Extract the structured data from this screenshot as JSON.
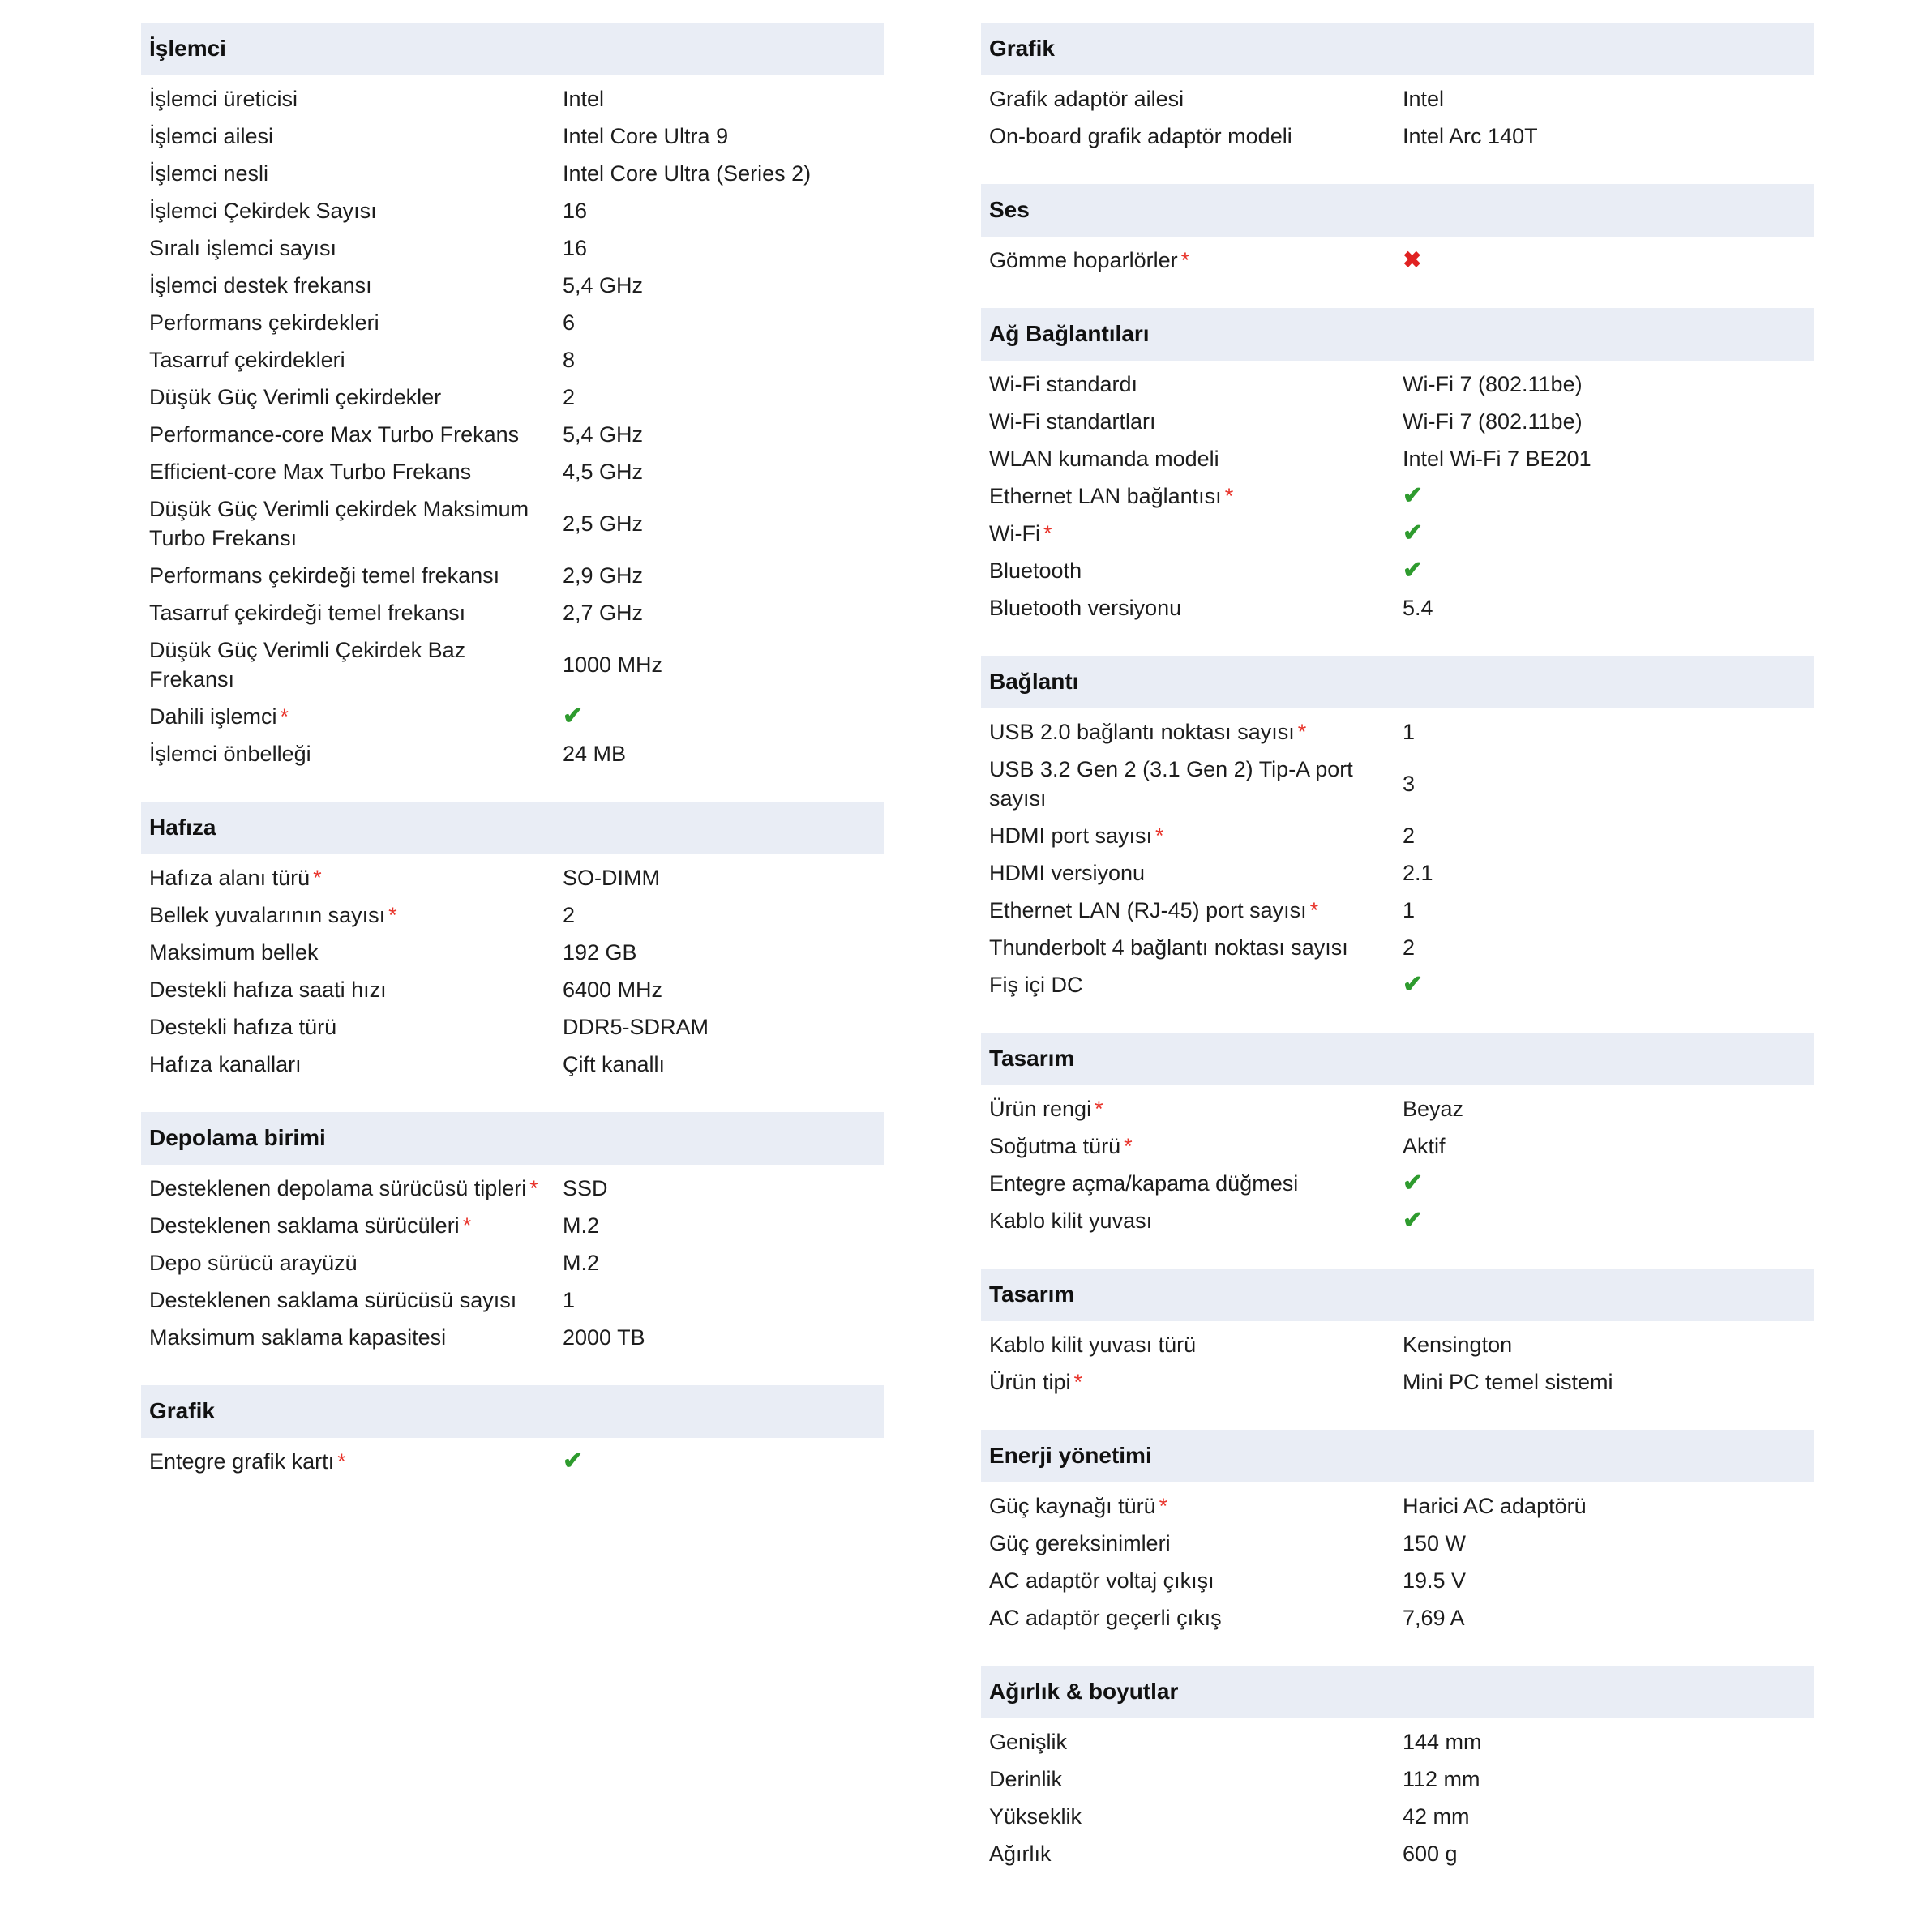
{
  "symbols": {
    "check": "✔",
    "cross": "✖",
    "required_marker": "*"
  },
  "colors": {
    "header_bg": "#e9edf5",
    "text": "#1d1d1d",
    "required": "#e8342b",
    "check": "#2e9b2e",
    "cross": "#e02222",
    "page_bg": "#ffffff"
  },
  "columns": [
    {
      "id": "left",
      "sections": [
        {
          "title": "İşlemci",
          "rows": [
            {
              "label": "İşlemci üreticisi",
              "value": "Intel"
            },
            {
              "label": "İşlemci ailesi",
              "value": "Intel Core Ultra 9"
            },
            {
              "label": "İşlemci nesli",
              "value": "Intel Core Ultra (Series 2)"
            },
            {
              "label": "İşlemci Çekirdek Sayısı",
              "value": "16"
            },
            {
              "label": "Sıralı işlemci sayısı",
              "value": "16"
            },
            {
              "label": "İşlemci destek frekansı",
              "value": "5,4 GHz"
            },
            {
              "label": "Performans çekirdekleri",
              "value": "6"
            },
            {
              "label": "Tasarruf çekirdekleri",
              "value": "8"
            },
            {
              "label": "Düşük Güç Verimli çekirdekler",
              "value": "2"
            },
            {
              "label": "Performance-core Max Turbo Frekans",
              "value": "5,4 GHz"
            },
            {
              "label": "Efficient-core Max Turbo Frekans",
              "value": "4,5 GHz"
            },
            {
              "label": "Düşük Güç Verimli çekirdek Maksimum Turbo Frekansı",
              "value": "2,5 GHz"
            },
            {
              "label": "Performans çekirdeği temel frekansı",
              "value": "2,9 GHz"
            },
            {
              "label": "Tasarruf çekirdeği temel frekansı",
              "value": "2,7 GHz"
            },
            {
              "label": "Düşük Güç Verimli Çekirdek Baz Frekansı",
              "value": "1000 MHz"
            },
            {
              "label": "Dahili işlemci",
              "required": true,
              "value_type": "check"
            },
            {
              "label": "İşlemci önbelleği",
              "value": "24 MB"
            }
          ]
        },
        {
          "title": "Hafıza",
          "rows": [
            {
              "label": "Hafıza alanı türü",
              "required": true,
              "value": "SO-DIMM"
            },
            {
              "label": "Bellek yuvalarının sayısı",
              "required": true,
              "value": "2"
            },
            {
              "label": "Maksimum bellek",
              "value": "192 GB"
            },
            {
              "label": "Destekli hafıza saati hızı",
              "value": "6400 MHz"
            },
            {
              "label": "Destekli hafıza türü",
              "value": "DDR5-SDRAM"
            },
            {
              "label": "Hafıza kanalları",
              "value": "Çift kanallı"
            }
          ]
        },
        {
          "title": "Depolama birimi",
          "rows": [
            {
              "label": "Desteklenen depolama sürücüsü tipleri",
              "required": true,
              "value": "SSD"
            },
            {
              "label": "Desteklenen saklama sürücüleri",
              "required": true,
              "value": "M.2"
            },
            {
              "label": "Depo sürücü arayüzü",
              "value": "M.2"
            },
            {
              "label": "Desteklenen saklama sürücüsü sayısı",
              "value": "1"
            },
            {
              "label": "Maksimum saklama kapasitesi",
              "value": "2000 TB"
            }
          ]
        },
        {
          "title": "Grafik",
          "rows": [
            {
              "label": "Entegre grafik kartı",
              "required": true,
              "value_type": "check"
            }
          ]
        }
      ]
    },
    {
      "id": "right",
      "sections": [
        {
          "title": "Grafik",
          "rows": [
            {
              "label": "Grafik adaptör ailesi",
              "value": "Intel"
            },
            {
              "label": "On-board grafik adaptör modeli",
              "value": "Intel Arc 140T"
            }
          ]
        },
        {
          "title": "Ses",
          "rows": [
            {
              "label": "Gömme hoparlörler",
              "required": true,
              "value_type": "cross"
            }
          ]
        },
        {
          "title": "Ağ Bağlantıları",
          "rows": [
            {
              "label": "Wi-Fi standardı",
              "value": "Wi-Fi 7 (802.11be)"
            },
            {
              "label": "Wi-Fi standartları",
              "value": "Wi-Fi 7 (802.11be)"
            },
            {
              "label": "WLAN kumanda modeli",
              "value": "Intel Wi-Fi 7 BE201"
            },
            {
              "label": "Ethernet LAN bağlantısı",
              "required": true,
              "value_type": "check"
            },
            {
              "label": "Wi-Fi",
              "required": true,
              "value_type": "check"
            },
            {
              "label": "Bluetooth",
              "value_type": "check"
            },
            {
              "label": "Bluetooth versiyonu",
              "value": "5.4"
            }
          ]
        },
        {
          "title": "Bağlantı",
          "rows": [
            {
              "label": "USB 2.0 bağlantı noktası sayısı",
              "required": true,
              "value": "1"
            },
            {
              "label": "USB 3.2 Gen 2 (3.1 Gen 2) Tip-A port sayısı",
              "value": "3"
            },
            {
              "label": "HDMI port sayısı",
              "required": true,
              "value": "2"
            },
            {
              "label": "HDMI versiyonu",
              "value": "2.1"
            },
            {
              "label": "Ethernet LAN (RJ-45) port sayısı",
              "required": true,
              "value": "1"
            },
            {
              "label": "Thunderbolt 4 bağlantı noktası sayısı",
              "value": "2"
            },
            {
              "label": "Fiş içi DC",
              "value_type": "check"
            }
          ]
        },
        {
          "title": "Tasarım",
          "rows": [
            {
              "label": "Ürün rengi",
              "required": true,
              "value": "Beyaz"
            },
            {
              "label": "Soğutma türü",
              "required": true,
              "value": "Aktif"
            },
            {
              "label": "Entegre açma/kapama düğmesi",
              "value_type": "check"
            },
            {
              "label": "Kablo kilit yuvası",
              "value_type": "check"
            }
          ]
        },
        {
          "title": "Tasarım",
          "rows": [
            {
              "label": "Kablo kilit yuvası türü",
              "value": "Kensington"
            },
            {
              "label": "Ürün tipi",
              "required": true,
              "value": "Mini PC temel sistemi"
            }
          ]
        },
        {
          "title": "Enerji yönetimi",
          "rows": [
            {
              "label": "Güç kaynağı türü",
              "required": true,
              "value": "Harici AC adaptörü"
            },
            {
              "label": "Güç gereksinimleri",
              "value": "150 W"
            },
            {
              "label": "AC adaptör voltaj çıkışı",
              "value": "19.5 V"
            },
            {
              "label": "AC adaptör geçerli çıkış",
              "value": "7,69 A"
            }
          ]
        },
        {
          "title": "Ağırlık & boyutlar",
          "rows": [
            {
              "label": "Genişlik",
              "value": "144 mm"
            },
            {
              "label": "Derinlik",
              "value": "112 mm"
            },
            {
              "label": "Yükseklik",
              "value": "42 mm"
            },
            {
              "label": "Ağırlık",
              "value": "600 g"
            }
          ]
        }
      ]
    }
  ]
}
